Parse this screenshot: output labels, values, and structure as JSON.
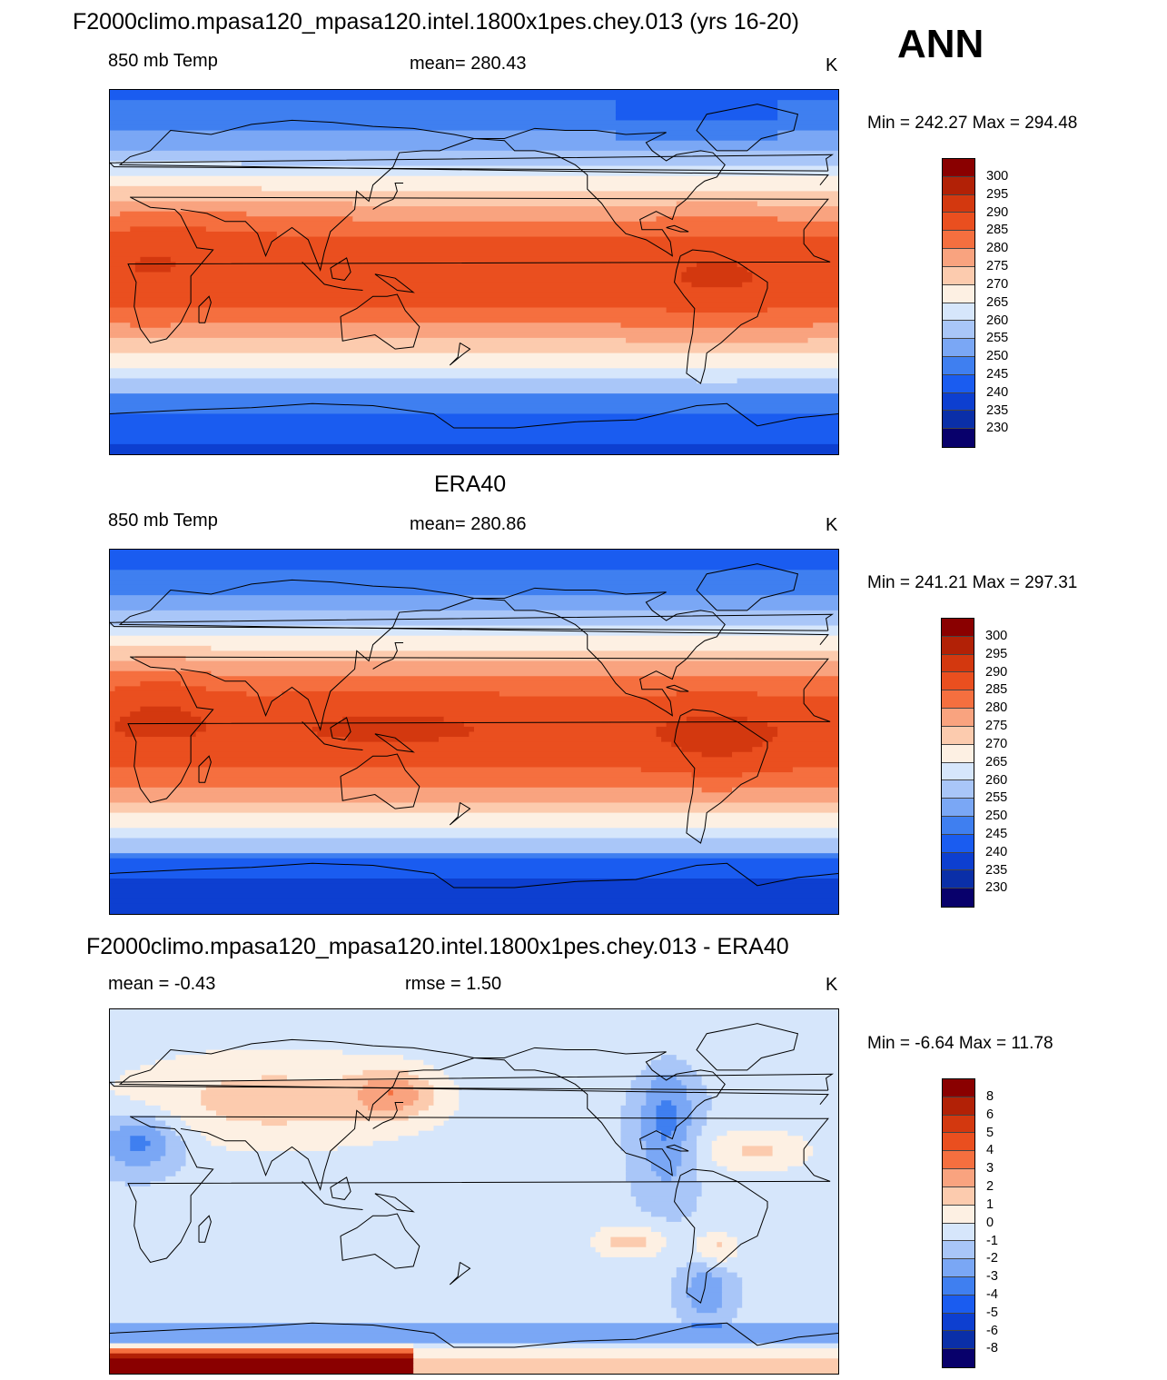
{
  "header": {
    "season": "ANN"
  },
  "colors": {
    "abs_scale": [
      "#08006b",
      "#0a2fa8",
      "#0d3fd0",
      "#1a5cf0",
      "#3f7ff0",
      "#7aa7f5",
      "#a9c6f8",
      "#d6e6fb",
      "#fdf0e3",
      "#fccbae",
      "#f9a37f",
      "#f56f3f",
      "#ea4f1f",
      "#d3380f",
      "#b22106",
      "#8a0000"
    ],
    "diff_scale": [
      "#08006b",
      "#0a2fa8",
      "#0d3fd0",
      "#1a5cf0",
      "#3f7ff0",
      "#7aa7f5",
      "#a9c6f8",
      "#d6e6fb",
      "#fdf0e3",
      "#fccbae",
      "#f9a37f",
      "#f56f3f",
      "#ea4f1f",
      "#d3380f",
      "#b22106",
      "#8a0000"
    ]
  },
  "panels": [
    {
      "title": "F2000climo.mpasa120_mpasa120.intel.1800x1pes.chey.013 (yrs 16-20)",
      "left_label": "850 mb Temp",
      "center_label": "mean= 280.43",
      "units": "K",
      "minmax": "Min = 242.27 Max = 294.48",
      "colorbar_labels": [
        "300",
        "295",
        "290",
        "285",
        "280",
        "275",
        "270",
        "265",
        "260",
        "255",
        "250",
        "245",
        "240",
        "235",
        "230"
      ],
      "field": "model"
    },
    {
      "title": "ERA40",
      "left_label": "850 mb Temp",
      "center_label": "mean= 280.86",
      "units": "K",
      "minmax": "Min = 241.21 Max = 297.31",
      "colorbar_labels": [
        "300",
        "295",
        "290",
        "285",
        "280",
        "275",
        "270",
        "265",
        "260",
        "255",
        "250",
        "245",
        "240",
        "235",
        "230"
      ],
      "field": "obs"
    },
    {
      "title": "F2000climo.mpasa120_mpasa120.intel.1800x1pes.chey.013 - ERA40",
      "left_label": "mean =  -0.43",
      "center_label": "rmse =   1.50",
      "units": "K",
      "minmax": "Min =  -6.64 Max =  11.78",
      "colorbar_labels": [
        "8",
        "6",
        "5",
        "4",
        "3",
        "2",
        "1",
        "0",
        "-1",
        "-2",
        "-3",
        "-4",
        "-5",
        "-6",
        "-8"
      ],
      "field": "diff"
    }
  ]
}
